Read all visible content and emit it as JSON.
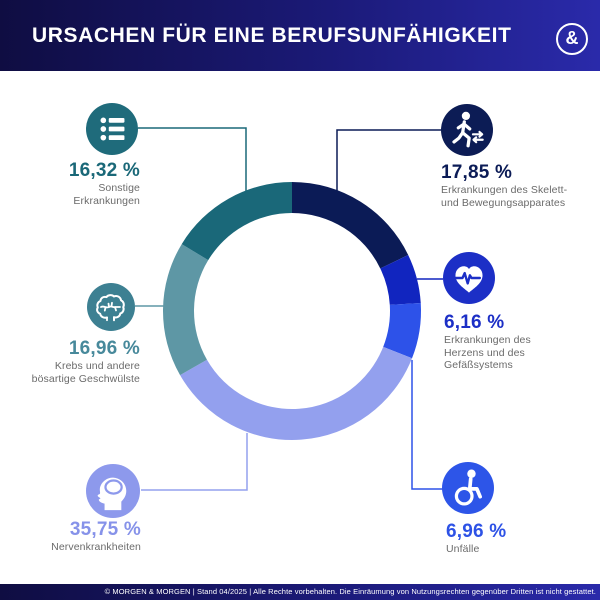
{
  "header": {
    "title": "URSACHEN FÜR EINE BERUFSUNFÄHIGKEIT",
    "logo_glyph": "&"
  },
  "footer": {
    "text": "© MORGEN & MORGEN | Stand 04/2025 | Alle Rechte vorbehalten. Die Einräumung von Nutzungsrechten gegenüber Dritten ist nicht gestattet."
  },
  "colors": {
    "header_gradient_start": "#0f0d42",
    "header_gradient_end": "#2a2aaa",
    "label_gray": "#6b6b6b",
    "background": "#ffffff"
  },
  "chart_data": {
    "type": "donut",
    "title": "Ursachen für eine Berufsunfähigkeit",
    "unit": "%",
    "start_angle_deg": 0,
    "direction": "clockwise",
    "total": 100,
    "series": [
      {
        "label": "Erkrankungen des Skelett- und Bewegungsapparates",
        "label_lines": [
          "Erkrankungen des Skelett-",
          "und Bewegungsapparates"
        ],
        "value": 17.85,
        "value_display": "17,85 %",
        "color": "#0b1b56",
        "circle_color": "#0c1c55",
        "value_color": "#0b1b56",
        "icon": "walking-person"
      },
      {
        "label": "Erkrankungen des Herzens und des Gefäßsystems",
        "label_lines": [
          "Erkrankungen des",
          "Herzens und des",
          "Gefäßsystems"
        ],
        "value": 6.16,
        "value_display": "6,16 %",
        "color": "#1125bf",
        "circle_color": "#1c2fc6",
        "value_color": "#1c2fc6",
        "icon": "heart-pulse"
      },
      {
        "label": "Unfälle",
        "label_lines": [
          "Unfälle"
        ],
        "value": 6.96,
        "value_display": "6,96 %",
        "color": "#2d52e9",
        "circle_color": "#2d55e8",
        "value_color": "#2d52e6",
        "icon": "wheelchair"
      },
      {
        "label": "Nervenkrankheiten",
        "label_lines": [
          "Nervenkrankheiten"
        ],
        "value": 35.75,
        "value_display": "35,75 %",
        "color": "#93a0ee",
        "circle_color": "#8d99ec",
        "value_color": "#8692e9",
        "icon": "head-brain"
      },
      {
        "label": "Krebs und andere bösartige Geschwülste",
        "label_lines": [
          "Krebs und andere",
          "bösartige Geschwülste"
        ],
        "value": 16.96,
        "value_display": "16,96 %",
        "color": "#5e97a5",
        "circle_color": "#3d8092",
        "value_color": "#47899b",
        "icon": "brain"
      },
      {
        "label": "Sonstige Erkrankungen",
        "label_lines": [
          "Sonstige",
          "Erkrankungen"
        ],
        "value": 16.32,
        "value_display": "16,32 %",
        "color": "#1a6879",
        "circle_color": "#1f6b7b",
        "value_color": "#1a6878",
        "icon": "list"
      }
    ]
  }
}
